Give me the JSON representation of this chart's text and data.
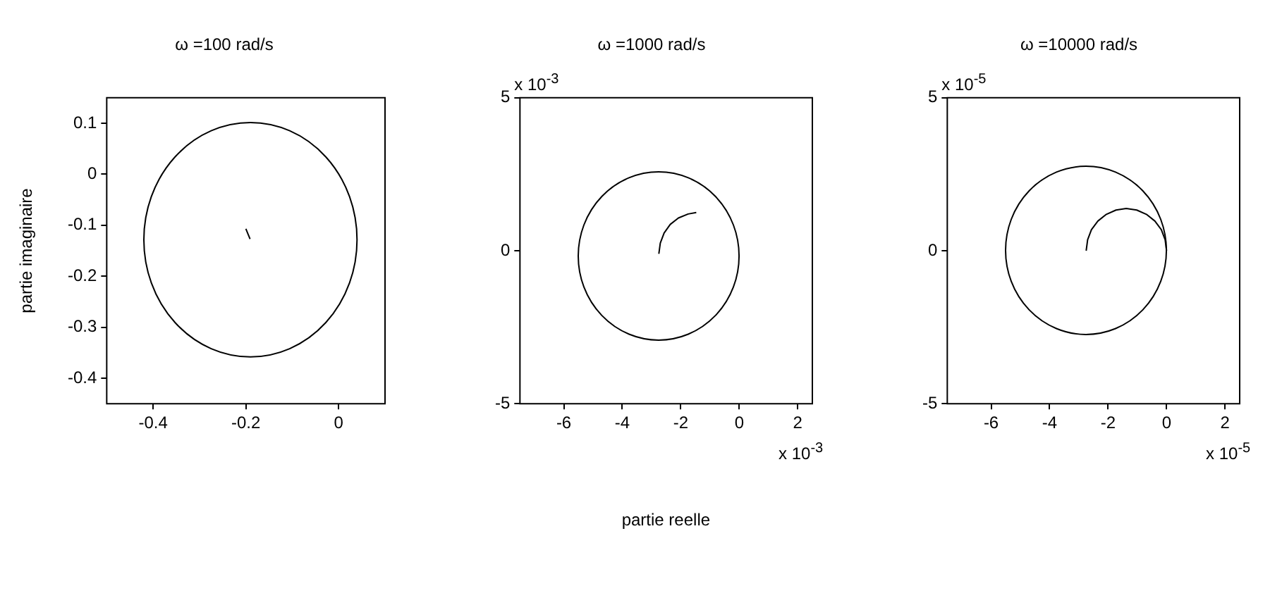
{
  "chart_data": [
    {
      "type": "line",
      "title": "ω =100 rad/s",
      "ylabel": "partie imaginaire",
      "xlim": [
        -0.5,
        0.1
      ],
      "ylim": [
        -0.45,
        0.15
      ],
      "xticks": [
        -0.4,
        -0.2,
        0
      ],
      "yticks": [
        -0.4,
        -0.3,
        -0.2,
        -0.1,
        0,
        0.1
      ],
      "marker": "none",
      "line_style": "solid",
      "series": [
        {
          "color": "#000000",
          "x": [
            -0.2,
            -0.191
          ],
          "values": [
            -0.107,
            -0.127
          ]
        }
      ]
    },
    {
      "type": "line",
      "title": "ω =1000 rad/s",
      "xlabel": "partie reelle",
      "annotations": [
        "x 10$^{-3}$",
        "x 10$^{-3}$"
      ],
      "xlim": [
        -7.5,
        2.5
      ],
      "ylim": [
        -5,
        5
      ],
      "xticks": [
        -6,
        -4,
        -2,
        0,
        2
      ],
      "yticks": [
        -5,
        0,
        5
      ],
      "marker": "none",
      "line_style": "solid",
      "series": [
        {
          "color": "#000000",
          "x": [
            -2.75,
            -2.7,
            -2.57,
            -2.36,
            -2.08,
            -1.75,
            -1.47
          ],
          "values": [
            -0.1,
            0.25,
            0.58,
            0.86,
            1.07,
            1.2,
            1.25
          ]
        }
      ]
    },
    {
      "type": "line",
      "title": "ω =10000 rad/s",
      "annotations": [
        "x 10$^{-5}$",
        "x 10$^{-5}$"
      ],
      "xlim": [
        -7.5,
        2.5
      ],
      "ylim": [
        -5,
        5
      ],
      "xticks": [
        -6,
        -4,
        -2,
        0,
        2
      ],
      "yticks": [
        -5,
        0,
        5
      ],
      "marker": "none",
      "line_style": "solid",
      "series": [
        {
          "color": "#000000",
          "x": [
            -2.75,
            -2.7,
            -2.57,
            -2.35,
            -2.06,
            -1.73,
            -1.38,
            -1.02,
            -0.69,
            -0.4,
            -0.18,
            -0.05,
            0
          ],
          "values": [
            0,
            0.36,
            0.69,
            0.97,
            1.19,
            1.33,
            1.38,
            1.33,
            1.19,
            0.97,
            0.69,
            0.36,
            0
          ]
        }
      ]
    }
  ]
}
